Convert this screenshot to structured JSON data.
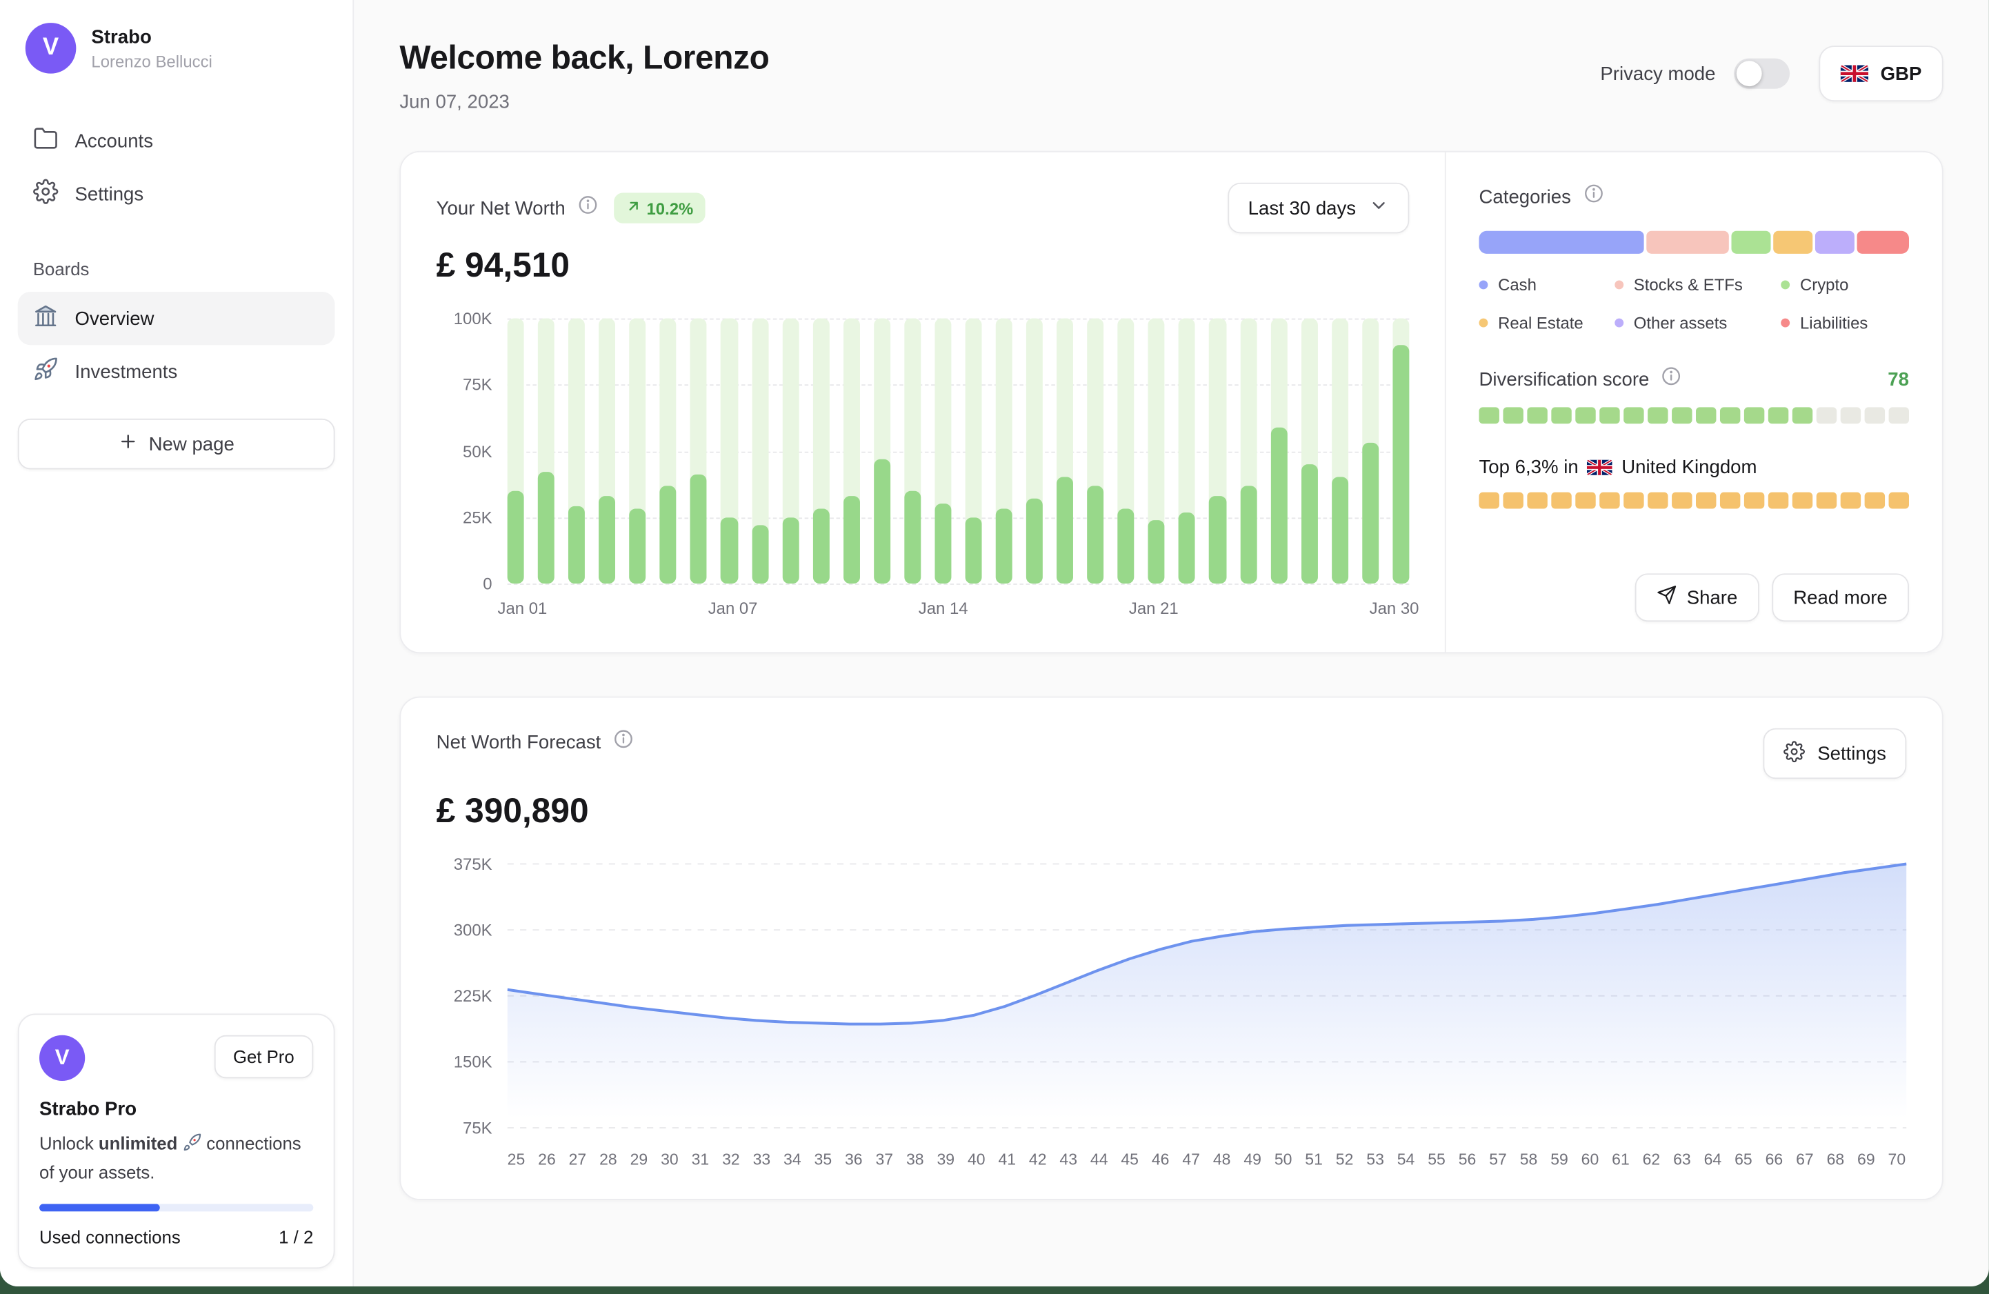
{
  "app": {
    "name": "Strabo",
    "user": "Lorenzo Bellucci",
    "logo_letter": "V",
    "accent_purple": "#7a5af5"
  },
  "sidebar": {
    "nav": [
      {
        "label": "Accounts"
      },
      {
        "label": "Settings"
      }
    ],
    "boards_label": "Boards",
    "boards": [
      {
        "label": "Overview",
        "active": true
      },
      {
        "label": "Investments",
        "active": false
      }
    ],
    "new_page_label": "New page",
    "pro": {
      "title": "Strabo Pro",
      "get_pro_label": "Get Pro",
      "unlock_prefix": "Unlock",
      "unlock_bold": "unlimited",
      "unlock_suffix": "connections of your assets.",
      "used_connections_label": "Used connections",
      "used_connections_value": "1 / 2",
      "progress_percent": 44,
      "progress_color": "#3e63f3"
    }
  },
  "header": {
    "title": "Welcome back, Lorenzo",
    "date": "Jun 07, 2023",
    "privacy_mode_label": "Privacy mode",
    "privacy_mode_on": false,
    "currency": "GBP"
  },
  "net_worth": {
    "title": "Your Net Worth",
    "change_badge": "10.2%",
    "value": "£ 94,510",
    "range_selector": "Last 30 days",
    "chart": {
      "type": "bar",
      "bar_color": "#98d88a",
      "bar_bg_color": "#e9f6e2",
      "ylim": [
        0,
        100
      ],
      "y_ticks": [
        "100K",
        "75K",
        "50K",
        "25K",
        "0"
      ],
      "x_ticks": [
        "Jan 01",
        "Jan 07",
        "Jan 14",
        "Jan 21",
        "Jan 30"
      ],
      "x_tick_bar_index": [
        0,
        7,
        14,
        21,
        29
      ],
      "unit": "K GBP",
      "values": [
        35,
        42,
        29,
        33,
        28,
        37,
        41,
        25,
        22,
        25,
        28,
        33,
        47,
        35,
        30,
        25,
        28,
        32,
        40,
        37,
        28,
        24,
        27,
        33,
        37,
        59,
        45,
        40,
        53,
        90
      ]
    }
  },
  "categories": {
    "title": "Categories",
    "segments": [
      {
        "label": "Cash",
        "color": "#97a4f9",
        "value": 38
      },
      {
        "label": "Stocks & ETFs",
        "color": "#f7c5bc",
        "value": 19
      },
      {
        "label": "Crypto",
        "color": "#abe294",
        "value": 9
      },
      {
        "label": "Real Estate",
        "color": "#f6c774",
        "value": 9
      },
      {
        "label": "Other assets",
        "color": "#bcaefb",
        "value": 9
      },
      {
        "label": "Liabilities",
        "color": "#f68989",
        "value": 12
      }
    ],
    "diversification": {
      "label": "Diversification score",
      "score": "78",
      "score_color": "#4ca154",
      "segments_total": 18,
      "segments_filled": 14,
      "color": "#a5d98b",
      "empty_color": "#e9e9e3"
    },
    "top_percent": {
      "prefix": "Top 6,3% in",
      "country": "United Kingdom",
      "segments_total": 18,
      "segments_filled": 18,
      "color": "#f5c26d",
      "empty_color": "#efefea"
    },
    "share_label": "Share",
    "read_more_label": "Read more"
  },
  "forecast": {
    "title": "Net Worth Forecast",
    "value": "£ 390,890",
    "settings_label": "Settings",
    "chart": {
      "type": "area",
      "line_color": "#6d92ee",
      "ylim": [
        75,
        375
      ],
      "y_ticks": [
        "375K",
        "300K",
        "225K",
        "150K",
        "75K"
      ],
      "y_ticks_values": [
        375,
        300,
        225,
        150,
        75
      ],
      "unit": "K GBP",
      "x_ticks": [
        25,
        26,
        27,
        28,
        29,
        30,
        31,
        32,
        33,
        34,
        35,
        36,
        37,
        38,
        39,
        40,
        41,
        42,
        43,
        44,
        45,
        46,
        47,
        48,
        49,
        50,
        51,
        52,
        53,
        54,
        55,
        56,
        57,
        58,
        59,
        60,
        61,
        62,
        63,
        64,
        65,
        66,
        67,
        68,
        69,
        70
      ],
      "values": [
        232,
        227,
        222,
        217,
        212,
        208,
        204,
        200,
        197,
        195,
        194,
        193,
        193,
        194,
        197,
        203,
        213,
        226,
        240,
        254,
        267,
        278,
        287,
        293,
        298,
        301,
        303,
        305,
        306,
        307,
        308,
        309,
        310,
        312,
        315,
        319,
        324,
        329,
        335,
        341,
        347,
        353,
        359,
        365,
        370,
        375
      ]
    }
  }
}
